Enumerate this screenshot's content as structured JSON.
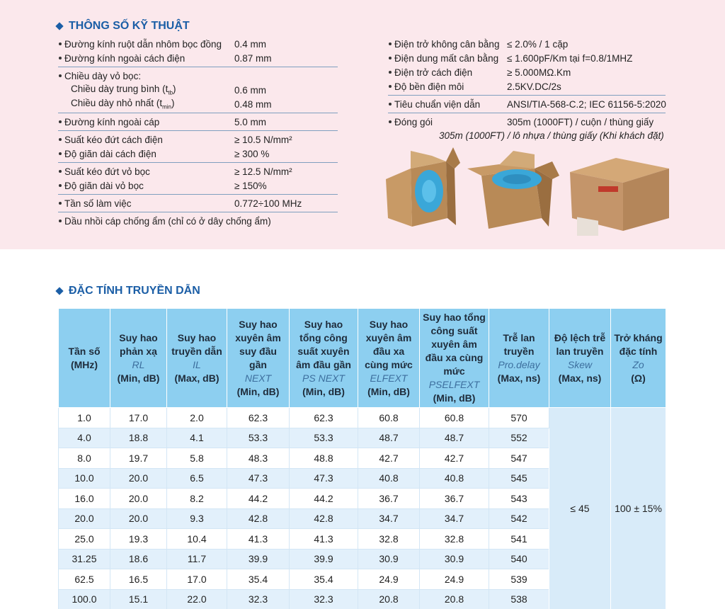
{
  "specs": {
    "title": "THÔNG SỐ KỸ THUẬT",
    "left": [
      [
        {
          "label": "Đường kính ruột dẫn nhôm bọc đồng",
          "value": "0.4 mm"
        },
        {
          "label": "Đường kính ngoài cách điện",
          "value": "0.87 mm"
        }
      ],
      [
        {
          "label": "Chiều dày vỏ bọc:",
          "items": [
            {
              "label": "Chiều dày trung bình (t",
              "sub": "tb",
              "label_end": ")",
              "value": "0.6 mm"
            },
            {
              "label": "Chiều dày nhỏ nhất (t",
              "sub": "min",
              "label_end": ")",
              "value": "0.48 mm"
            }
          ]
        }
      ],
      [
        {
          "label": "Đường kính ngoài cáp",
          "value": "5.0 mm"
        }
      ],
      [
        {
          "label": "Suất kéo đứt cách điện",
          "value": "≥ 10.5 N/mm²"
        },
        {
          "label": "Độ giãn dài cách điện",
          "value": "≥ 300 %"
        }
      ],
      [
        {
          "label": "Suất kéo đứt vỏ bọc",
          "value": "≥ 12.5 N/mm²"
        },
        {
          "label": "Độ giãn dài vỏ bọc",
          "value": "≥ 150%"
        }
      ],
      [
        {
          "label": "Tần số làm việc",
          "value": "0.772÷100 MHz"
        }
      ],
      [
        {
          "label": "Dầu nhồi cáp chống ẩm (chỉ có ở dây chống ẩm)"
        }
      ]
    ],
    "right": [
      [
        {
          "label": "Điện trở không cân bằng",
          "value": "≤ 2.0% / 1 cặp"
        },
        {
          "label": "Điện dung mất cân bằng",
          "value": "≤ 1.600pF/Km tại f=0.8/1MHZ"
        },
        {
          "label": "Điện trở cách điện",
          "value": "≥ 5.000MΩ.Km"
        },
        {
          "label": "Độ bền điện môi",
          "value": "2.5KV.DC/2s"
        }
      ],
      [
        {
          "label": "Tiêu chuẩn viện dẫn",
          "value": "ANSI/TIA-568-C.2; IEC 61156-5:2020"
        }
      ],
      [
        {
          "label": "Đóng gói",
          "value": "305m (1000FT) / cuộn / thùng giấy",
          "note": "305m (1000FT) / lô nhựa / thùng giấy (Khi khách đặt)"
        }
      ]
    ]
  },
  "transmission": {
    "title": "ĐẶC TÍNH TRUYỀN DẪN",
    "headers": [
      {
        "name": "Tần số",
        "unit": "(MHz)"
      },
      {
        "name": "Suy hao phản xạ",
        "abbr": "RL",
        "unit": "(Min, dB)"
      },
      {
        "name": "Suy hao truyền dẫn",
        "abbr": "IL",
        "unit": "(Max, dB)"
      },
      {
        "name": "Suy hao xuyên âm suy đầu gần",
        "abbr": "NEXT",
        "unit": "(Min, dB)"
      },
      {
        "name": "Suy hao tổng công suất xuyên âm đầu gần",
        "abbr": "PS NEXT",
        "unit": "(Min, dB)"
      },
      {
        "name": "Suy hao xuyên âm đầu xa cùng mức",
        "abbr": "ELFEXT",
        "unit": "(Min, dB)"
      },
      {
        "name": "Suy hao tổng công suất xuyên âm đầu xa cùng mức",
        "abbr": "PSELFEXT",
        "unit": "(Min, dB)"
      },
      {
        "name": "Trễ lan truyền",
        "abbr": "Pro.delay",
        "unit": "(Max, ns)"
      },
      {
        "name": "Độ lệch trễ lan truyền",
        "abbr": "Skew",
        "unit": "(Max, ns)"
      },
      {
        "name": "Trở kháng đặc tính",
        "abbr": "Zo",
        "unit": "(Ω)"
      }
    ],
    "rows": [
      [
        "1.0",
        "17.0",
        "2.0",
        "62.3",
        "62.3",
        "60.8",
        "60.8",
        "570"
      ],
      [
        "4.0",
        "18.8",
        "4.1",
        "53.3",
        "53.3",
        "48.7",
        "48.7",
        "552"
      ],
      [
        "8.0",
        "19.7",
        "5.8",
        "48.3",
        "48.8",
        "42.7",
        "42.7",
        "547"
      ],
      [
        "10.0",
        "20.0",
        "6.5",
        "47.3",
        "47.3",
        "40.8",
        "40.8",
        "545"
      ],
      [
        "16.0",
        "20.0",
        "8.2",
        "44.2",
        "44.2",
        "36.7",
        "36.7",
        "543"
      ],
      [
        "20.0",
        "20.0",
        "9.3",
        "42.8",
        "42.8",
        "34.7",
        "34.7",
        "542"
      ],
      [
        "25.0",
        "19.3",
        "10.4",
        "41.3",
        "41.3",
        "32.8",
        "32.8",
        "541"
      ],
      [
        "31.25",
        "18.6",
        "11.7",
        "39.9",
        "39.9",
        "30.9",
        "30.9",
        "540"
      ],
      [
        "62.5",
        "16.5",
        "17.0",
        "35.4",
        "35.4",
        "24.9",
        "24.9",
        "539"
      ],
      [
        "100.0",
        "15.1",
        "22.0",
        "32.3",
        "32.3",
        "20.8",
        "20.8",
        "538"
      ]
    ],
    "skew": "≤ 45",
    "impedance": "100 ± 15%"
  }
}
